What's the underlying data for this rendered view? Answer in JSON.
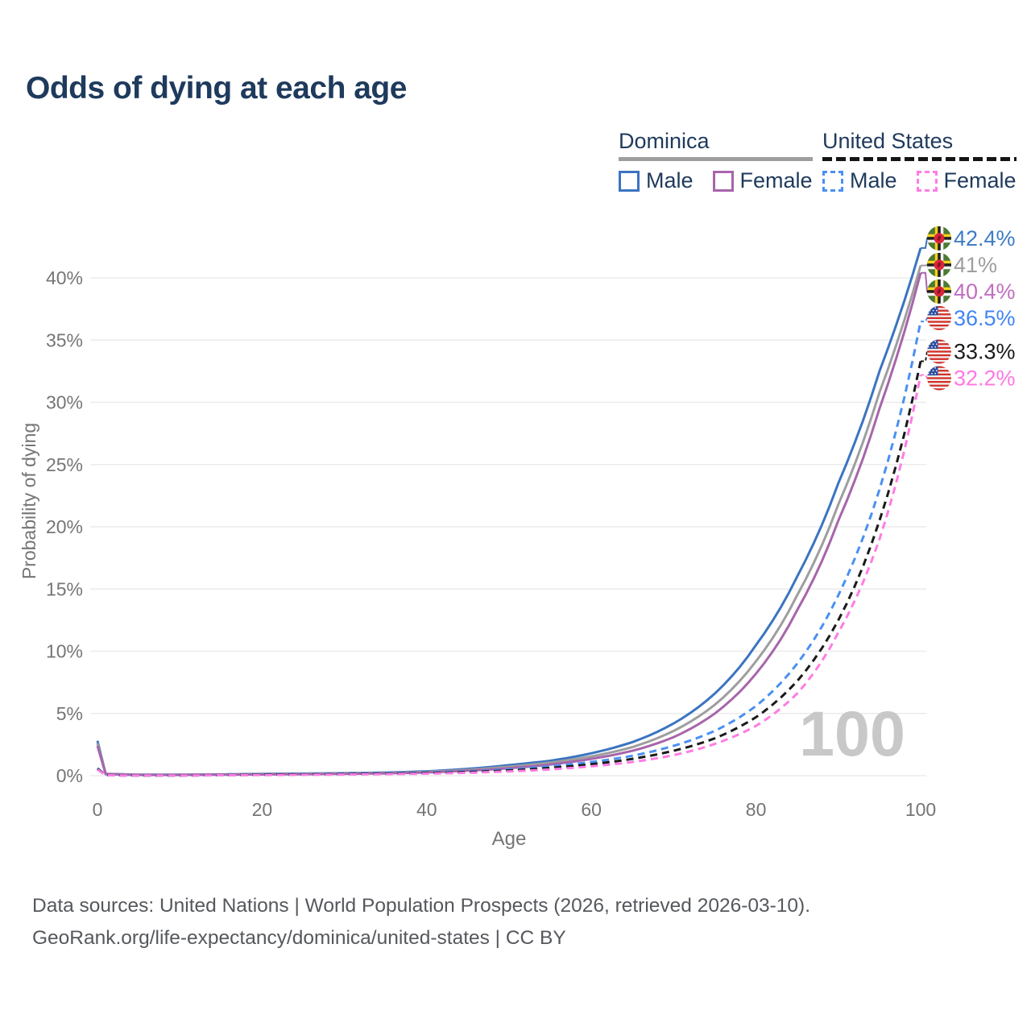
{
  "title": "Odds of dying at each age",
  "legend": {
    "dominica": {
      "label": "Dominica",
      "male": "Male",
      "female": "Female"
    },
    "united_states": {
      "label": "United States",
      "male": "Male",
      "female": "Female"
    }
  },
  "footer": {
    "line1": "Data sources: United Nations | World Population Prospects (2026, retrieved 2026-03-10).",
    "line2": "GeoRank.org/life-expectancy/dominica/united-states | CC BY"
  },
  "colors": {
    "title_text": "#1e3a5c",
    "legend_text": "#1e3a5c",
    "axis_text": "#757575",
    "grid": "#ebebeb",
    "watermark": "#c8c8c8",
    "footer_text": "#55585c",
    "dominica_underline": "#9e9e9e",
    "us_underline": "#151515"
  },
  "chart_data": {
    "type": "line",
    "title": "Odds of dying at each age",
    "xlabel": "Age",
    "ylabel": "Probability of dying",
    "xlim": [
      0,
      100
    ],
    "ylim": [
      0,
      44
    ],
    "grid": "horizontal-only",
    "legend_position": "top-right",
    "watermark": "100",
    "x_ticks": [
      {
        "value": 0,
        "label": "0"
      },
      {
        "value": 20,
        "label": "20"
      },
      {
        "value": 40,
        "label": "40"
      },
      {
        "value": 60,
        "label": "60"
      },
      {
        "value": 80,
        "label": "80"
      },
      {
        "value": 100,
        "label": "100"
      }
    ],
    "y_ticks": [
      {
        "value": 0,
        "label": "0%"
      },
      {
        "value": 5,
        "label": "5%"
      },
      {
        "value": 10,
        "label": "10%"
      },
      {
        "value": 15,
        "label": "15%"
      },
      {
        "value": 20,
        "label": "20%"
      },
      {
        "value": 25,
        "label": "25%"
      },
      {
        "value": 30,
        "label": "30%"
      },
      {
        "value": 35,
        "label": "35%"
      },
      {
        "value": 40,
        "label": "40%"
      }
    ],
    "ages": [
      0,
      1,
      5,
      10,
      15,
      20,
      25,
      30,
      35,
      40,
      45,
      50,
      55,
      60,
      65,
      70,
      75,
      80,
      85,
      90,
      95,
      100
    ],
    "series": [
      {
        "id": "dominica-male",
        "name": "Dominica Male",
        "country": "Dominica",
        "sex": "Male",
        "style": "solid",
        "color": "#3b74c0",
        "label_color": "#3e7cc6",
        "flag": "dominica",
        "end_label": "42.4%",
        "values": [
          2.8,
          0.15,
          0.08,
          0.08,
          0.1,
          0.15,
          0.17,
          0.2,
          0.25,
          0.35,
          0.55,
          0.85,
          1.2,
          1.8,
          2.7,
          4.2,
          6.6,
          10.5,
          16.0,
          23.5,
          32.5,
          42.4
        ]
      },
      {
        "id": "dominica-both",
        "name": "Dominica Both sexes",
        "country": "Dominica",
        "sex": "Both",
        "style": "solid",
        "color": "#9e9e9e",
        "label_color": "#9e9e9e",
        "flag": "dominica",
        "end_label": "41%",
        "values": [
          2.6,
          0.14,
          0.07,
          0.07,
          0.09,
          0.13,
          0.15,
          0.18,
          0.22,
          0.3,
          0.47,
          0.72,
          1.05,
          1.55,
          2.3,
          3.6,
          5.7,
          9.2,
          14.5,
          21.8,
          30.8,
          41.0
        ]
      },
      {
        "id": "dominica-female",
        "name": "Dominica Female",
        "country": "Dominica",
        "sex": "Female",
        "style": "solid",
        "color": "#a765ab",
        "label_color": "#c06fc0",
        "flag": "dominica",
        "end_label": "40.4%",
        "values": [
          2.4,
          0.13,
          0.06,
          0.06,
          0.08,
          0.1,
          0.12,
          0.15,
          0.19,
          0.26,
          0.4,
          0.6,
          0.9,
          1.35,
          2.0,
          3.1,
          5.0,
          8.2,
          13.3,
          20.5,
          29.5,
          40.4
        ]
      },
      {
        "id": "us-male",
        "name": "United States Male",
        "country": "United States",
        "sex": "Male",
        "style": "dashed",
        "color": "#4a90f2",
        "label_color": "#4285f4",
        "flag": "us",
        "end_label": "36.5%",
        "values": [
          0.6,
          0.04,
          0.02,
          0.02,
          0.05,
          0.1,
          0.13,
          0.16,
          0.2,
          0.25,
          0.35,
          0.5,
          0.75,
          1.1,
          1.6,
          2.4,
          3.6,
          5.6,
          9.0,
          14.5,
          23.0,
          36.5
        ]
      },
      {
        "id": "us-both",
        "name": "United States Both sexes",
        "country": "United States",
        "sex": "Both",
        "style": "dashed",
        "color": "#1a1a1a",
        "label_color": "#1a1a1a",
        "flag": "us",
        "end_label": "33.3%",
        "values": [
          0.55,
          0.04,
          0.02,
          0.02,
          0.04,
          0.08,
          0.1,
          0.13,
          0.16,
          0.21,
          0.29,
          0.42,
          0.62,
          0.92,
          1.35,
          2.0,
          3.0,
          4.7,
          7.6,
          12.5,
          20.5,
          33.3
        ]
      },
      {
        "id": "us-female",
        "name": "United States Female",
        "country": "United States",
        "sex": "Female",
        "style": "dashed",
        "color": "#ff7ce4",
        "label_color": "#ff77e2",
        "flag": "us",
        "end_label": "32.2%",
        "values": [
          0.5,
          0.03,
          0.015,
          0.015,
          0.03,
          0.05,
          0.07,
          0.09,
          0.12,
          0.16,
          0.23,
          0.34,
          0.5,
          0.75,
          1.1,
          1.65,
          2.55,
          4.0,
          6.6,
          11.5,
          19.0,
          32.2
        ]
      }
    ]
  }
}
